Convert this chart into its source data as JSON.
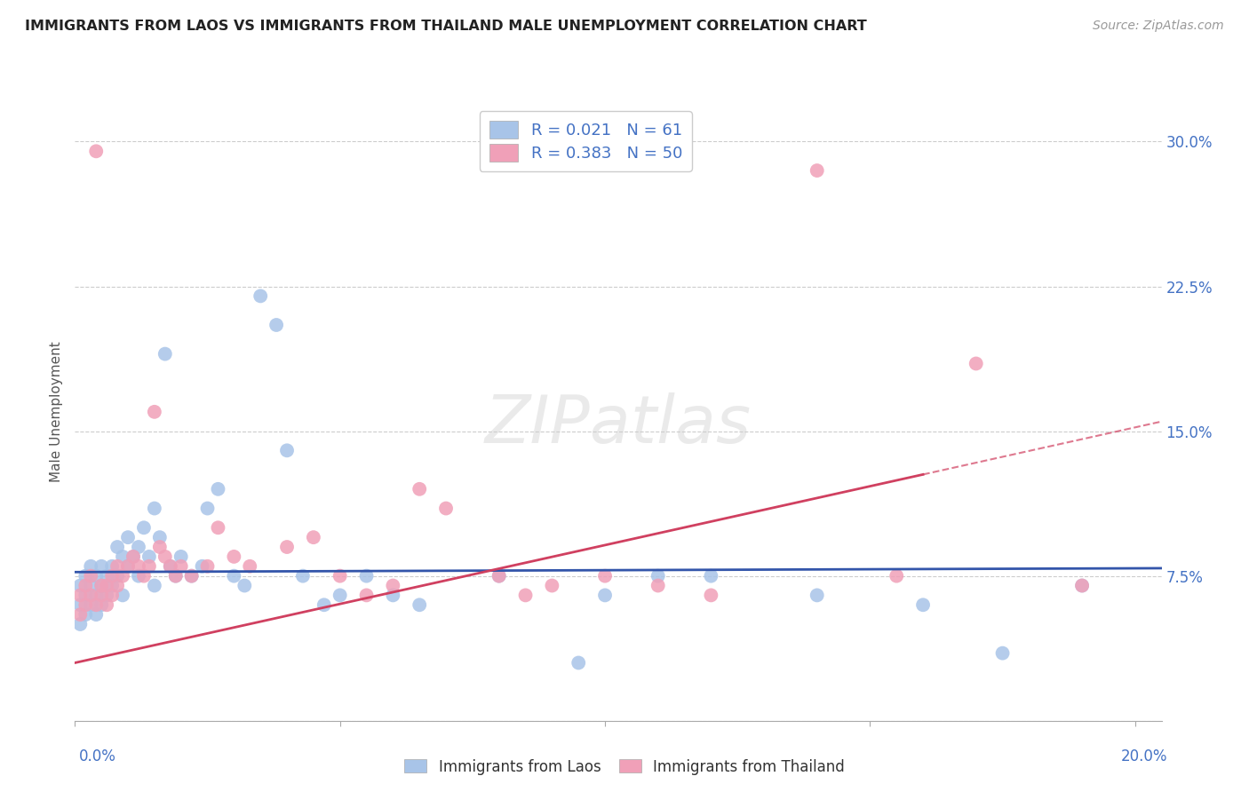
{
  "title": "IMMIGRANTS FROM LAOS VS IMMIGRANTS FROM THAILAND MALE UNEMPLOYMENT CORRELATION CHART",
  "source": "Source: ZipAtlas.com",
  "ylabel": "Male Unemployment",
  "y_ticks": [
    0.0,
    0.075,
    0.15,
    0.225,
    0.3
  ],
  "y_tick_labels_right": [
    "",
    "7.5%",
    "15.0%",
    "22.5%",
    "30.0%"
  ],
  "x_ticks": [
    0.0,
    0.05,
    0.1,
    0.15,
    0.2
  ],
  "x_tick_labels": [
    "0.0%",
    "",
    "",
    "",
    "20.0%"
  ],
  "xlim": [
    0.0,
    0.205
  ],
  "ylim": [
    0.0,
    0.32
  ],
  "laos_R": 0.021,
  "laos_N": 61,
  "thailand_R": 0.383,
  "thailand_N": 50,
  "laos_color": "#a8c4e8",
  "thailand_color": "#f0a0b8",
  "laos_line_color": "#3355aa",
  "thailand_line_color": "#d04060",
  "tick_label_color": "#4472c4",
  "background_color": "#ffffff",
  "laos_x": [
    0.001,
    0.001,
    0.001,
    0.002,
    0.002,
    0.002,
    0.003,
    0.003,
    0.003,
    0.004,
    0.004,
    0.004,
    0.005,
    0.005,
    0.005,
    0.006,
    0.006,
    0.007,
    0.007,
    0.008,
    0.008,
    0.009,
    0.009,
    0.01,
    0.01,
    0.011,
    0.012,
    0.012,
    0.013,
    0.014,
    0.015,
    0.015,
    0.016,
    0.017,
    0.018,
    0.019,
    0.02,
    0.022,
    0.024,
    0.025,
    0.027,
    0.03,
    0.032,
    0.035,
    0.038,
    0.04,
    0.043,
    0.047,
    0.05,
    0.055,
    0.06,
    0.065,
    0.08,
    0.095,
    0.1,
    0.11,
    0.12,
    0.14,
    0.16,
    0.175,
    0.19
  ],
  "laos_y": [
    0.06,
    0.07,
    0.05,
    0.065,
    0.055,
    0.075,
    0.06,
    0.07,
    0.08,
    0.065,
    0.075,
    0.055,
    0.07,
    0.06,
    0.08,
    0.075,
    0.065,
    0.08,
    0.07,
    0.075,
    0.09,
    0.085,
    0.065,
    0.08,
    0.095,
    0.085,
    0.075,
    0.09,
    0.1,
    0.085,
    0.07,
    0.11,
    0.095,
    0.19,
    0.08,
    0.075,
    0.085,
    0.075,
    0.08,
    0.11,
    0.12,
    0.075,
    0.07,
    0.22,
    0.205,
    0.14,
    0.075,
    0.06,
    0.065,
    0.075,
    0.065,
    0.06,
    0.075,
    0.03,
    0.065,
    0.075,
    0.075,
    0.065,
    0.06,
    0.035,
    0.07
  ],
  "thailand_x": [
    0.001,
    0.001,
    0.002,
    0.002,
    0.003,
    0.003,
    0.004,
    0.004,
    0.005,
    0.005,
    0.006,
    0.006,
    0.007,
    0.007,
    0.008,
    0.008,
    0.009,
    0.01,
    0.011,
    0.012,
    0.013,
    0.014,
    0.015,
    0.016,
    0.017,
    0.018,
    0.019,
    0.02,
    0.022,
    0.025,
    0.027,
    0.03,
    0.033,
    0.04,
    0.045,
    0.05,
    0.055,
    0.06,
    0.065,
    0.07,
    0.08,
    0.085,
    0.09,
    0.1,
    0.11,
    0.12,
    0.14,
    0.155,
    0.17,
    0.19
  ],
  "thailand_y": [
    0.065,
    0.055,
    0.06,
    0.07,
    0.065,
    0.075,
    0.295,
    0.06,
    0.065,
    0.07,
    0.06,
    0.07,
    0.075,
    0.065,
    0.07,
    0.08,
    0.075,
    0.08,
    0.085,
    0.08,
    0.075,
    0.08,
    0.16,
    0.09,
    0.085,
    0.08,
    0.075,
    0.08,
    0.075,
    0.08,
    0.1,
    0.085,
    0.08,
    0.09,
    0.095,
    0.075,
    0.065,
    0.07,
    0.12,
    0.11,
    0.075,
    0.065,
    0.07,
    0.075,
    0.07,
    0.065,
    0.285,
    0.075,
    0.185,
    0.07
  ],
  "laos_line_x": [
    0.0,
    0.205
  ],
  "laos_line_y": [
    0.077,
    0.079
  ],
  "thailand_line_x": [
    0.0,
    0.205
  ],
  "thailand_line_y": [
    0.03,
    0.155
  ]
}
